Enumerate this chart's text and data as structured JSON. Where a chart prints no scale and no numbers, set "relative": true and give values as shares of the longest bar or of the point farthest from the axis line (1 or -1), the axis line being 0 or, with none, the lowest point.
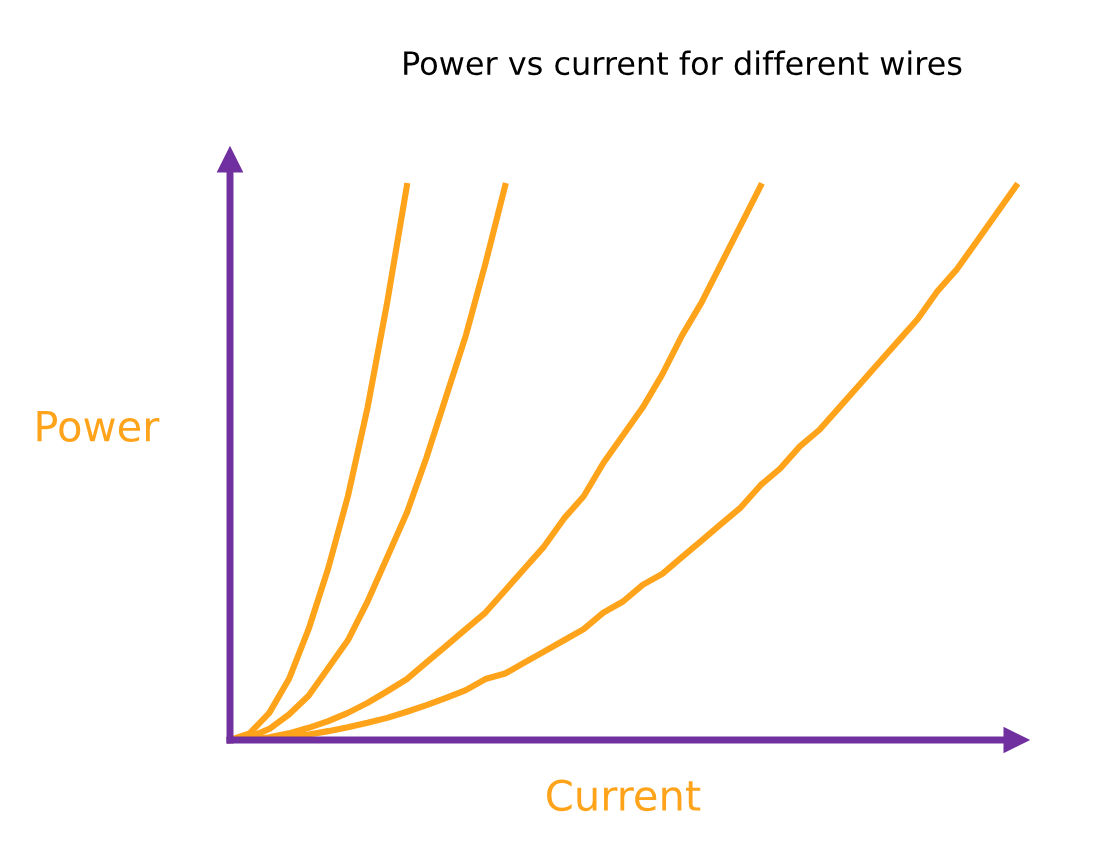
{
  "chart_data": {
    "type": "line",
    "title": "Power vs current for different wires",
    "xlabel": "Current",
    "ylabel": "Power",
    "relative": true,
    "legend": false,
    "marker": "none",
    "line_style": "solid",
    "categories": [
      null,
      null,
      null,
      null,
      null,
      null,
      null,
      null,
      null,
      null,
      null,
      null,
      null,
      null,
      null,
      null,
      null,
      null,
      null,
      null,
      null,
      null,
      null,
      null,
      null,
      null,
      null,
      null,
      null,
      null,
      null,
      null,
      null,
      null,
      null,
      null,
      null,
      null,
      null,
      null,
      null
    ],
    "series": [
      {
        "color": "#ffa31a",
        "values": [
          0,
          0.012,
          0.049,
          0.11,
          0.2,
          0.31,
          0.44,
          0.6,
          0.79,
          1,
          null,
          null,
          null,
          null,
          null,
          null,
          null,
          null,
          null,
          null,
          null,
          null,
          null,
          null,
          null,
          null,
          null,
          null,
          null,
          null,
          null,
          null,
          null,
          null,
          null,
          null,
          null,
          null,
          null,
          null,
          null
        ]
      },
      {
        "color": "#ffa31a",
        "values": [
          0,
          0.005,
          0.02,
          0.046,
          0.08,
          0.13,
          0.18,
          0.25,
          0.33,
          0.41,
          0.51,
          0.62,
          0.73,
          0.86,
          1,
          null,
          null,
          null,
          null,
          null,
          null,
          null,
          null,
          null,
          null,
          null,
          null,
          null,
          null,
          null,
          null,
          null,
          null,
          null,
          null,
          null,
          null,
          null,
          null,
          null,
          null
        ]
      },
      {
        "color": "#ffa31a",
        "values": [
          0,
          0.001,
          0.005,
          0.012,
          0.022,
          0.034,
          0.049,
          0.067,
          0.088,
          0.11,
          0.14,
          0.17,
          0.2,
          0.23,
          0.27,
          0.31,
          0.35,
          0.4,
          0.44,
          0.5,
          0.55,
          0.6,
          0.66,
          0.73,
          0.79,
          0.86,
          0.93,
          1,
          null,
          null,
          null,
          null,
          null,
          null,
          null,
          null,
          null,
          null,
          null,
          null,
          null
        ]
      },
      {
        "color": "#ffa31a",
        "values": [
          0,
          0.001,
          0.003,
          0.006,
          0.01,
          0.016,
          0.023,
          0.031,
          0.04,
          0.051,
          0.063,
          0.076,
          0.09,
          0.11,
          0.12,
          0.14,
          0.16,
          0.18,
          0.2,
          0.23,
          0.25,
          0.28,
          0.3,
          0.33,
          0.36,
          0.39,
          0.42,
          0.46,
          0.49,
          0.53,
          0.56,
          0.6,
          0.64,
          0.68,
          0.72,
          0.76,
          0.81,
          0.85,
          0.9,
          0.95,
          1
        ]
      }
    ]
  }
}
